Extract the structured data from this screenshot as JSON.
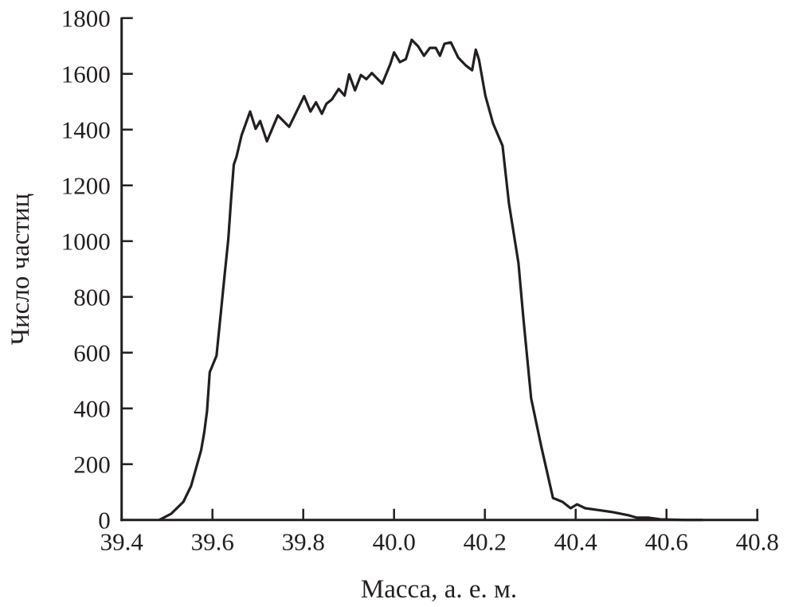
{
  "chart_data": {
    "type": "line",
    "title": "",
    "xlabel": "Масса, а. е. м.",
    "ylabel": "Число частиц",
    "xlim": [
      39.4,
      40.8
    ],
    "ylim": [
      0,
      1800
    ],
    "xticks": [
      "39.4",
      "39.6",
      "39.8",
      "40.0",
      "40.2",
      "40.4",
      "40.6",
      "40.8"
    ],
    "yticks": [
      "0",
      "200",
      "400",
      "600",
      "800",
      "1000",
      "1200",
      "1400",
      "1600",
      "1800"
    ],
    "grid": false,
    "line_color": "#231f20",
    "series": [
      {
        "x": [
          39.483,
          39.509,
          39.536,
          39.553,
          39.575,
          39.582,
          39.588,
          39.594,
          39.609,
          39.619,
          39.626,
          39.635,
          39.641,
          39.647,
          39.653,
          39.664,
          39.683,
          39.695,
          39.705,
          39.72,
          39.744,
          39.769,
          39.802,
          39.816,
          39.828,
          39.841,
          39.851,
          39.863,
          39.878,
          39.891,
          39.901,
          39.914,
          39.927,
          39.939,
          39.951,
          39.974,
          39.992,
          40.0,
          40.013,
          40.026,
          40.039,
          40.053,
          40.066,
          40.079,
          40.092,
          40.101,
          40.111,
          40.125,
          40.141,
          40.158,
          40.172,
          40.18,
          40.187,
          40.201,
          40.218,
          40.239,
          40.253,
          40.274,
          40.285,
          40.302,
          40.324,
          40.35,
          40.371,
          40.389,
          40.403,
          40.421,
          40.447,
          40.482,
          40.518,
          40.535,
          40.561,
          40.587,
          40.64,
          40.68
        ],
        "y": [
          0,
          22,
          65,
          122,
          250,
          314,
          390,
          530,
          589,
          750,
          865,
          1007,
          1150,
          1274,
          1303,
          1379,
          1465,
          1403,
          1431,
          1358,
          1451,
          1410,
          1520,
          1465,
          1498,
          1457,
          1493,
          1508,
          1546,
          1522,
          1598,
          1541,
          1596,
          1581,
          1603,
          1565,
          1636,
          1677,
          1642,
          1653,
          1722,
          1699,
          1665,
          1693,
          1693,
          1665,
          1708,
          1713,
          1659,
          1630,
          1613,
          1687,
          1651,
          1522,
          1422,
          1342,
          1136,
          921,
          722,
          436,
          265,
          79,
          65,
          42,
          56,
          42,
          36,
          28,
          16,
          8,
          8,
          2,
          0,
          0
        ]
      }
    ]
  }
}
